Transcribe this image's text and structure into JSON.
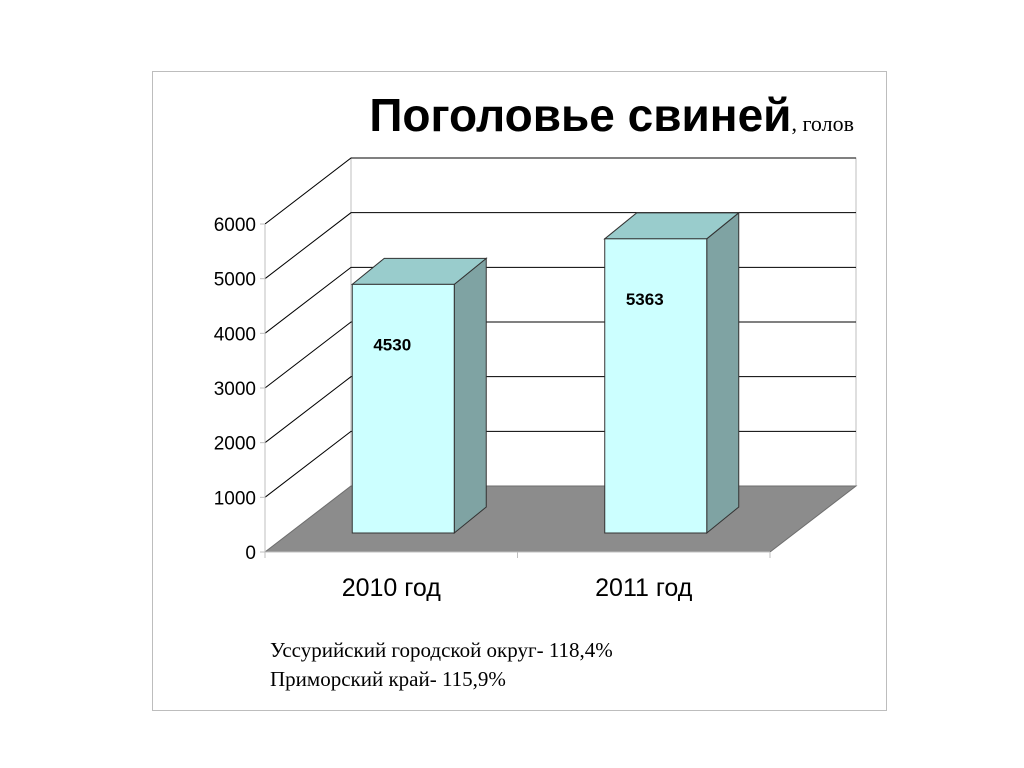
{
  "title": {
    "main": "Поголовье свиней",
    "unit": ", голов"
  },
  "chart_data": {
    "type": "bar",
    "categories": [
      "2010 год",
      "2011 год"
    ],
    "values": [
      4530,
      5363
    ],
    "data_labels": [
      "4530",
      "5363"
    ],
    "ylim": [
      0,
      6000
    ],
    "yticks": [
      "0",
      "1000",
      "2000",
      "3000",
      "4000",
      "5000",
      "6000"
    ],
    "grid": true,
    "style": "3d-column",
    "colors": {
      "bar_front": "#ccffff",
      "bar_top": "#99cccc",
      "bar_side": "#7fa3a3",
      "floor": "#8c8c8c",
      "gridline": "#000000"
    }
  },
  "notes": [
    "Уссурийский городской округ- 118,4%",
    "Приморский край- 115,9%"
  ]
}
